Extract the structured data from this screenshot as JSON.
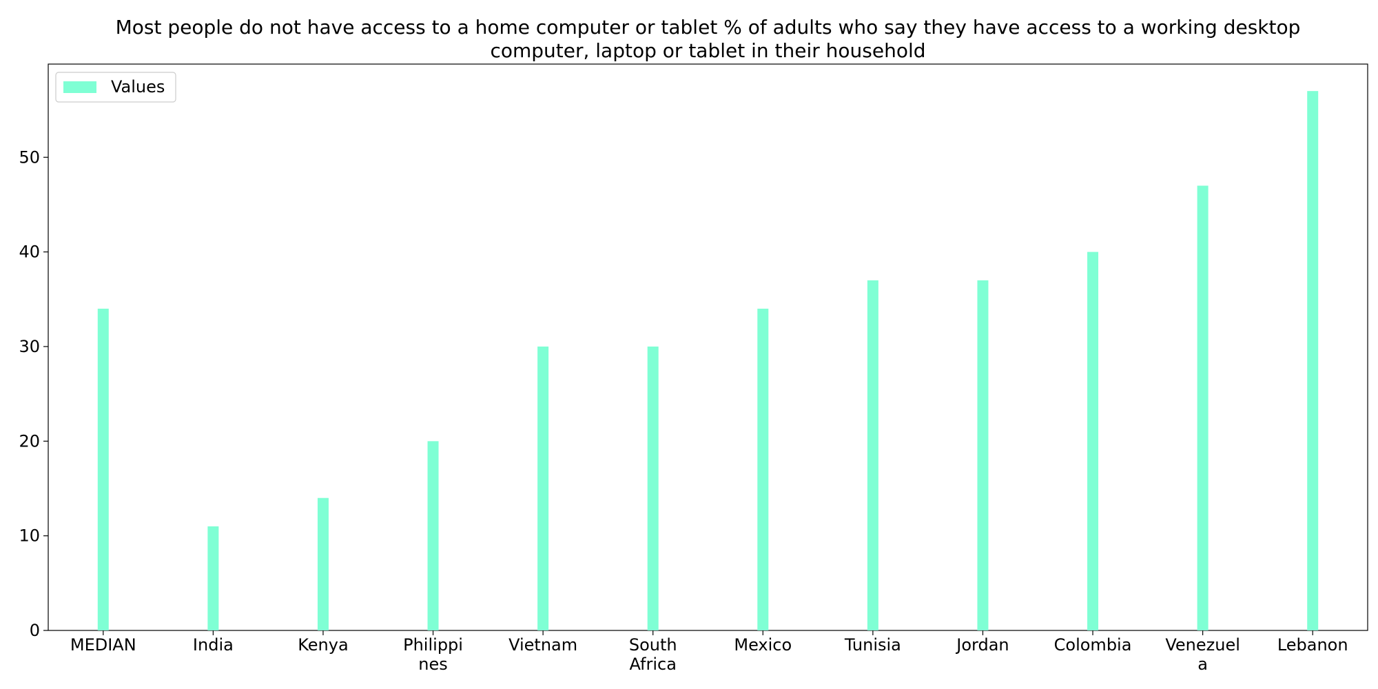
{
  "chart_data": {
    "type": "bar",
    "title": "Most people do not have access to a home computer or tablet % of adults who say they have access to a working desktop computer, laptop or tablet in their household",
    "title_lines": [
      "Most people do not have access to a home computer or tablet % of adults who say they have access to a working desktop",
      "computer, laptop or tablet in their household"
    ],
    "categories": [
      "MEDIAN",
      "India",
      "Kenya",
      "Philippines",
      "Vietnam",
      "South Africa",
      "Mexico",
      "Tunisia",
      "Jordan",
      "Colombia",
      "Venezuela",
      "Lebanon"
    ],
    "category_label_lines": [
      [
        "MEDIAN"
      ],
      [
        "India"
      ],
      [
        "Kenya"
      ],
      [
        "Philippi",
        "nes"
      ],
      [
        "Vietnam"
      ],
      [
        "South",
        "Africa"
      ],
      [
        "Mexico"
      ],
      [
        "Tunisia"
      ],
      [
        "Jordan"
      ],
      [
        "Colombia"
      ],
      [
        "Venezuel",
        "a"
      ],
      [
        "Lebanon"
      ]
    ],
    "series": [
      {
        "name": "Values",
        "values": [
          34,
          11,
          14,
          20,
          30,
          30,
          34,
          37,
          37,
          40,
          47,
          57
        ],
        "color": "#7fffd4"
      }
    ],
    "xlabel": "",
    "ylabel": "",
    "ylim": [
      0,
      59.85
    ],
    "yticks": [
      0,
      10,
      20,
      30,
      40,
      50
    ],
    "grid": false,
    "legend_position": "top-left"
  }
}
